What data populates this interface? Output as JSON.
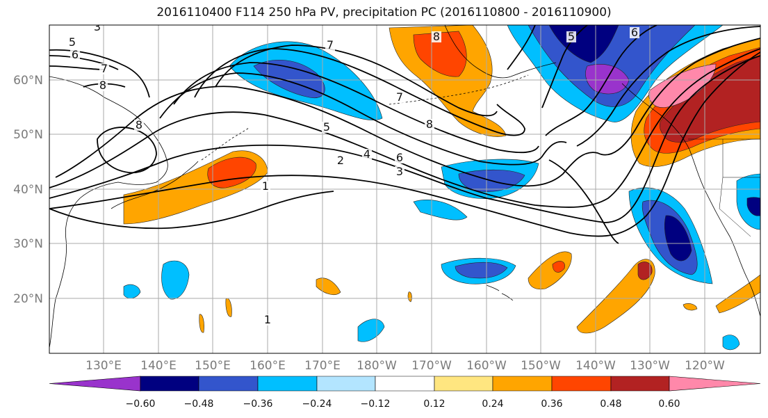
{
  "title": "2016110400 F114 250 hPa PV, precipitation PC (2016110800 - 2016110900)",
  "map": {
    "lat_labels": [
      "60°N",
      "50°N",
      "40°N",
      "30°N",
      "20°N"
    ],
    "lon_labels": [
      "130°E",
      "140°E",
      "150°E",
      "160°E",
      "170°E",
      "180°W",
      "170°W",
      "160°W",
      "150°W",
      "140°W",
      "130°W",
      "120°W"
    ],
    "pv_contour_levels": [
      "1",
      "2",
      "3",
      "4",
      "5",
      "6",
      "7",
      "8"
    ],
    "fill_colors": {
      "neg_extreme": "#9933cc",
      "neg_strong": "#000080",
      "neg_moderate": "#3355cc",
      "neg_weak": "#00bfff",
      "neg_faint": "#b3e5ff",
      "neutral": "#ffffff",
      "pos_faint": "#ffe680",
      "pos_weak": "#ffa500",
      "pos_moderate": "#ff4500",
      "pos_strong": "#b22222",
      "pos_extreme": "#ff88aa"
    }
  },
  "colorbar": {
    "tick_labels": [
      "−0.60",
      "−0.48",
      "−0.36",
      "−0.24",
      "−0.12",
      "0.12",
      "0.24",
      "0.36",
      "0.48",
      "0.60"
    ],
    "colors": [
      "#9933cc",
      "#000080",
      "#3355cc",
      "#00bfff",
      "#b3e5ff",
      "#ffffff",
      "#ffe680",
      "#ffa500",
      "#ff4500",
      "#b22222",
      "#ff88aa"
    ]
  }
}
